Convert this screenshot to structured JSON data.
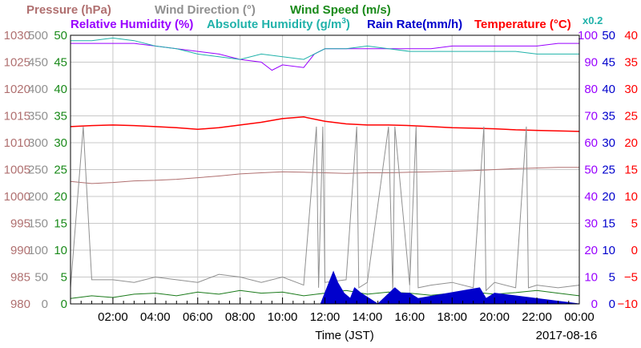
{
  "chart_data": {
    "type": "line",
    "headers": {
      "pressure": "Pressure (hPa)",
      "wind_direction": "Wind Direction (°)",
      "wind_speed": "Wind Speed (m/s)",
      "relative_humidity": "Relative Humidity (%)",
      "absolute_humidity_prefix": "Absolute Humidity (g/m",
      "absolute_humidity_sup": "3",
      "absolute_humidity_suffix": ")",
      "rain_rate": "Rain Rate(mm/h)",
      "temperature": "Temperature (°C)",
      "scale_note": "x0.2"
    },
    "xlabel": "Time (JST)",
    "date": "2017-08-16",
    "x_range_hours": [
      0,
      24
    ],
    "x_ticks": [
      "02:00",
      "04:00",
      "06:00",
      "08:00",
      "10:00",
      "12:00",
      "14:00",
      "16:00",
      "18:00",
      "20:00",
      "22:00",
      "00:00"
    ],
    "axes": {
      "pressure": {
        "range": [
          980,
          1030
        ],
        "ticks": [
          "980",
          "985",
          "990",
          "995",
          "1000",
          "1005",
          "1010",
          "1015",
          "1020",
          "1025",
          "1030"
        ]
      },
      "wind_direction": {
        "range": [
          0,
          500
        ],
        "ticks": [
          "0",
          "50",
          "100",
          "150",
          "200",
          "250",
          "300",
          "350",
          "400",
          "450",
          "500"
        ]
      },
      "wind_speed": {
        "range": [
          0,
          50
        ],
        "ticks": [
          "0",
          "5",
          "10",
          "15",
          "20",
          "25",
          "30",
          "35",
          "40",
          "45",
          "50"
        ]
      },
      "humidity": {
        "range": [
          0,
          100
        ],
        "ticks": [
          "0",
          "10",
          "20",
          "30",
          "40",
          "50",
          "60",
          "70",
          "80",
          "90",
          "100"
        ]
      },
      "rain_rate": {
        "range": [
          0,
          50
        ],
        "ticks": [
          "0",
          "5",
          "10",
          "15",
          "20",
          "25",
          "30",
          "35",
          "40",
          "45",
          "50"
        ]
      },
      "temperature": {
        "range": [
          -10,
          40
        ],
        "ticks": [
          "−10",
          "−5",
          "0",
          "5",
          "10",
          "15",
          "20",
          "25",
          "30",
          "35",
          "40"
        ]
      }
    },
    "series": [
      {
        "name": "Temperature (°C)",
        "axis": "temperature",
        "color": "#ff0000",
        "x": [
          0,
          1,
          2,
          3,
          4,
          5,
          6,
          7,
          8,
          9,
          10,
          11,
          12,
          13,
          14,
          15,
          16,
          17,
          18,
          19,
          20,
          21,
          22,
          23,
          24
        ],
        "values": [
          23.0,
          23.2,
          23.3,
          23.2,
          23.0,
          22.8,
          22.5,
          22.8,
          23.3,
          23.8,
          24.5,
          24.8,
          24.0,
          23.5,
          23.3,
          23.3,
          23.2,
          23.0,
          22.8,
          22.7,
          22.6,
          22.4,
          22.3,
          22.2,
          22.1
        ]
      },
      {
        "name": "Pressure (hPa)",
        "axis": "pressure",
        "color": "#b07070",
        "x": [
          0,
          1,
          2,
          3,
          4,
          5,
          6,
          7,
          8,
          9,
          10,
          11,
          12,
          13,
          14,
          15,
          16,
          17,
          18,
          19,
          20,
          21,
          22,
          23,
          24
        ],
        "values": [
          1002.8,
          1002.4,
          1002.6,
          1002.9,
          1003.0,
          1003.2,
          1003.5,
          1003.8,
          1004.2,
          1004.4,
          1004.6,
          1004.5,
          1004.4,
          1004.3,
          1004.4,
          1004.4,
          1004.5,
          1004.6,
          1004.7,
          1004.8,
          1005.0,
          1005.2,
          1005.3,
          1005.4,
          1005.4
        ]
      },
      {
        "name": "Relative Humidity (%)",
        "axis": "humidity",
        "color": "#9900ff",
        "x": [
          0,
          1,
          2,
          3,
          4,
          5,
          6,
          7,
          8,
          9,
          9.5,
          10,
          11,
          11.5,
          12,
          13,
          14,
          15,
          16,
          17,
          18,
          19,
          20,
          21,
          22,
          23,
          24
        ],
        "values": [
          97,
          97,
          97,
          97,
          96,
          95,
          94,
          93,
          91,
          90,
          87,
          89,
          88,
          93,
          95,
          95,
          95,
          95,
          95,
          95,
          96,
          96,
          96,
          96,
          96,
          97,
          97
        ]
      },
      {
        "name": "Absolute Humidity (g/m3)",
        "axis": "humidity",
        "color": "#20b2aa",
        "x": [
          0,
          1,
          2,
          3,
          4,
          5,
          6,
          7,
          8,
          9,
          10,
          11,
          12,
          13,
          14,
          15,
          16,
          17,
          18,
          19,
          20,
          21,
          22,
          23,
          24
        ],
        "values": [
          98,
          98,
          99,
          98,
          96,
          95,
          93,
          92,
          91,
          93,
          92,
          91,
          95,
          95,
          96,
          95,
          94,
          94,
          94,
          94,
          94,
          94,
          93,
          93,
          93
        ]
      },
      {
        "name": "Wind Speed (m/s)",
        "axis": "wind_speed",
        "color": "#1a7a1a",
        "x": [
          0,
          1,
          2,
          3,
          4,
          5,
          6,
          7,
          8,
          9,
          10,
          11,
          12,
          13,
          14,
          15,
          16,
          17,
          18,
          19,
          20,
          21,
          22,
          23,
          24
        ],
        "values": [
          1.0,
          1.5,
          1.2,
          1.8,
          2.0,
          1.5,
          2.2,
          1.8,
          2.5,
          2.0,
          2.2,
          1.5,
          2.0,
          2.5,
          1.8,
          2.2,
          2.0,
          1.6,
          2.0,
          2.2,
          1.8,
          2.1,
          2.5,
          2.0,
          1.5
        ]
      },
      {
        "name": "Wind Direction (°)",
        "axis": "wind_direction",
        "color": "#909090",
        "x": [
          0,
          0.6,
          1,
          2,
          3,
          4,
          5,
          6,
          7,
          8,
          9,
          10,
          11,
          11.6,
          11.7,
          11.9,
          12,
          13,
          13.5,
          13.6,
          14,
          15,
          15.2,
          15.3,
          16,
          16.3,
          16.4,
          17,
          18,
          19,
          19.5,
          19.6,
          20,
          21,
          21.5,
          21.6,
          22,
          23,
          24
        ],
        "values": [
          30,
          330,
          45,
          45,
          40,
          50,
          45,
          40,
          55,
          50,
          40,
          50,
          35,
          330,
          30,
          330,
          40,
          45,
          330,
          30,
          40,
          330,
          25,
          330,
          35,
          330,
          30,
          35,
          40,
          30,
          330,
          25,
          40,
          30,
          330,
          30,
          35,
          30,
          35
        ]
      },
      {
        "name": "Rain Rate(mm/h)",
        "axis": "rain_rate",
        "color": "#0000cc",
        "x": [
          0,
          11.8,
          12.1,
          12.4,
          12.6,
          12.9,
          13.2,
          13.4,
          13.7,
          14.5,
          15.3,
          15.6,
          16.0,
          16.4,
          19.3,
          19.6,
          20.0,
          24
        ],
        "values": [
          0,
          0,
          3,
          6,
          4,
          2,
          1,
          3,
          2,
          0,
          3,
          2,
          2,
          1,
          3,
          1,
          2,
          0
        ]
      }
    ]
  }
}
